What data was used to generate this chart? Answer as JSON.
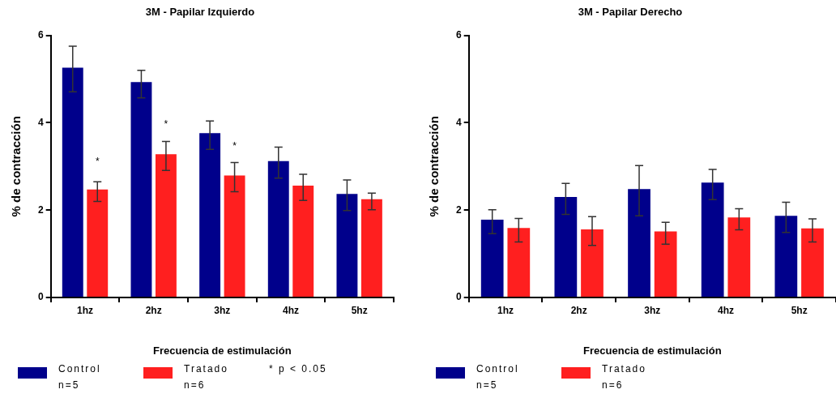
{
  "chart_data": [
    {
      "type": "bar",
      "title": "3M - Papilar Izquierdo",
      "xlabel": "Frecuencia de estimulación",
      "ylabel": "% de contracción",
      "categories": [
        "1hz",
        "2hz",
        "3hz",
        "4hz",
        "5hz"
      ],
      "series": [
        {
          "name": "Control\nn=5",
          "color": "#00008b",
          "values": [
            5.26,
            4.93,
            3.76,
            3.12,
            2.37
          ],
          "errors": [
            [
              4.71,
              5.75
            ],
            [
              4.57,
              5.2
            ],
            [
              3.39,
              4.04
            ],
            [
              2.73,
              3.44
            ],
            [
              1.99,
              2.69
            ]
          ]
        },
        {
          "name": "Tratado\nn=6",
          "color": "#ff1f1f",
          "values": [
            2.47,
            3.28,
            2.79,
            2.56,
            2.25
          ],
          "errors": [
            [
              2.2,
              2.65
            ],
            [
              2.91,
              3.57
            ],
            [
              2.42,
              3.09
            ],
            [
              2.22,
              2.82
            ],
            [
              2.01,
              2.39
            ]
          ]
        }
      ],
      "annotations": [
        {
          "text": "*",
          "x": "1hz",
          "y": 3.1
        },
        {
          "text": "*",
          "x": "2hz",
          "y": 3.95
        },
        {
          "text": "*",
          "x": "3hz",
          "y": 3.45
        },
        "* p < 0.05"
      ],
      "ylim": [
        0,
        6
      ],
      "yticks": [
        0,
        2,
        4,
        6
      ],
      "grid": false,
      "legend": "bottom"
    },
    {
      "type": "bar",
      "title": "3M - Papilar Derecho",
      "xlabel": "Frecuencia de estimulación",
      "ylabel": "% de contracción",
      "categories": [
        "1hz",
        "2hz",
        "3hz",
        "4hz",
        "5hz"
      ],
      "series": [
        {
          "name": "Control\nn=5",
          "color": "#00008b",
          "values": [
            1.78,
            2.3,
            2.48,
            2.63,
            1.87
          ],
          "errors": [
            [
              1.46,
              2.01
            ],
            [
              1.9,
              2.61
            ],
            [
              1.87,
              3.02
            ],
            [
              2.24,
              2.93
            ],
            [
              1.49,
              2.18
            ]
          ]
        },
        {
          "name": "Tratado\nn=6",
          "color": "#ff1f1f",
          "values": [
            1.59,
            1.56,
            1.51,
            1.83,
            1.58
          ],
          "errors": [
            [
              1.27,
              1.81
            ],
            [
              1.19,
              1.85
            ],
            [
              1.22,
              1.72
            ],
            [
              1.55,
              2.03
            ],
            [
              1.27,
              1.8
            ]
          ]
        }
      ],
      "ylim": [
        0,
        6
      ],
      "yticks": [
        0,
        2,
        4,
        6
      ],
      "grid": false,
      "legend": "bottom"
    }
  ]
}
